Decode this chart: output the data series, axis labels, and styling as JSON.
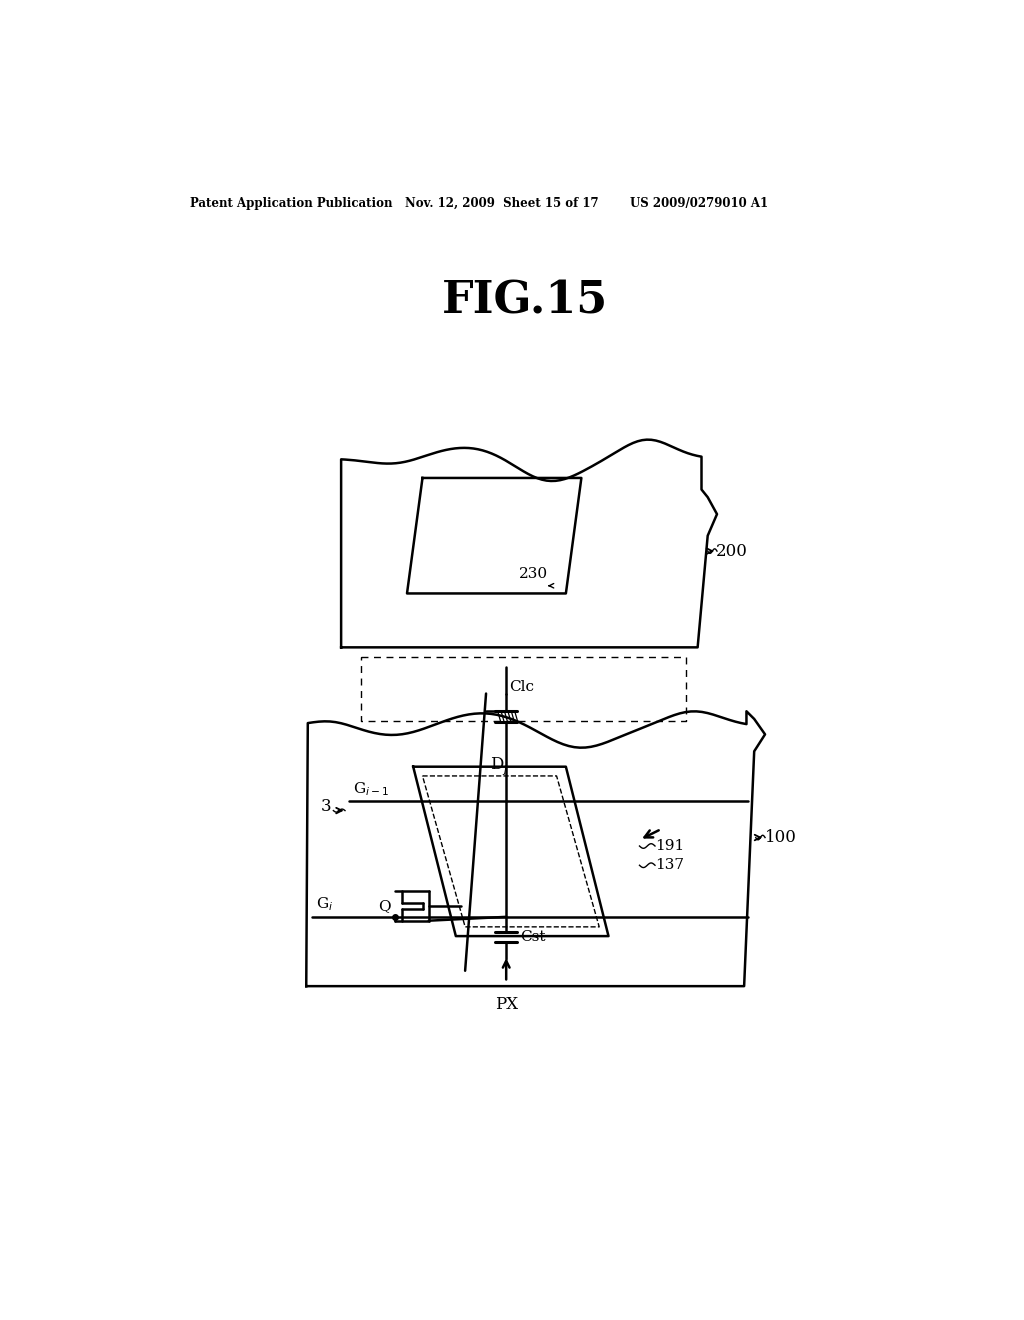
{
  "fig_title": "FIG.15",
  "header_left": "Patent Application Publication",
  "header_mid": "Nov. 12, 2009  Sheet 15 of 17",
  "header_right": "US 2009/0279010 A1",
  "bg_color": "#ffffff",
  "line_color": "#000000",
  "fig_width": 10.24,
  "fig_height": 13.2
}
